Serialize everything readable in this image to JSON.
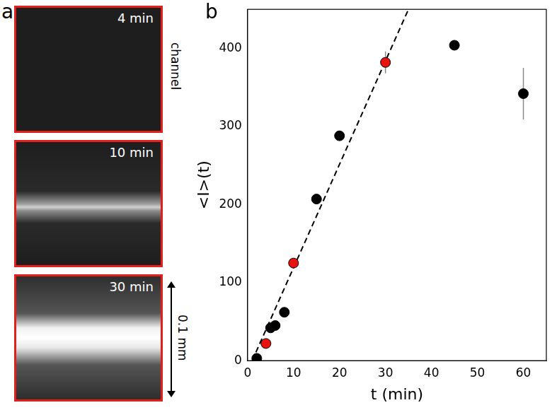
{
  "images": {
    "panel_label": "a",
    "frames": [
      {
        "label": "4 min"
      },
      {
        "label": "10 min"
      },
      {
        "label": "30 min"
      }
    ],
    "channel_label": "channel",
    "scale_bar": "0.1 mm"
  },
  "chart_data": {
    "type": "scatter",
    "panel_label": "b",
    "x_label": "t (min)",
    "y_label": "<I>(t)",
    "xlim": [
      0,
      65
    ],
    "xticks": [
      0,
      10,
      20,
      30,
      40,
      50,
      60
    ],
    "ylim": [
      0,
      450
    ],
    "yticks": [
      0,
      100,
      200,
      300,
      400
    ],
    "grid": false,
    "series": [
      {
        "type": "line",
        "line_style": "dashed",
        "color": "#000000",
        "x": [
          1,
          35
        ],
        "values": [
          0,
          450
        ]
      },
      {
        "type": "scatter",
        "marker": "circle",
        "color": "#000000",
        "x": [
          2,
          5,
          6,
          8,
          15,
          20,
          45,
          60
        ],
        "values": [
          3,
          42,
          45,
          62,
          207,
          288,
          404,
          342
        ],
        "errors": [
          0,
          0,
          0,
          0,
          0,
          0,
          0,
          33
        ]
      },
      {
        "type": "scatter",
        "marker": "circle",
        "color": "#e8130f",
        "x": [
          4,
          10,
          30
        ],
        "values": [
          22,
          125,
          382
        ],
        "errors": [
          0,
          0,
          14
        ]
      }
    ]
  }
}
